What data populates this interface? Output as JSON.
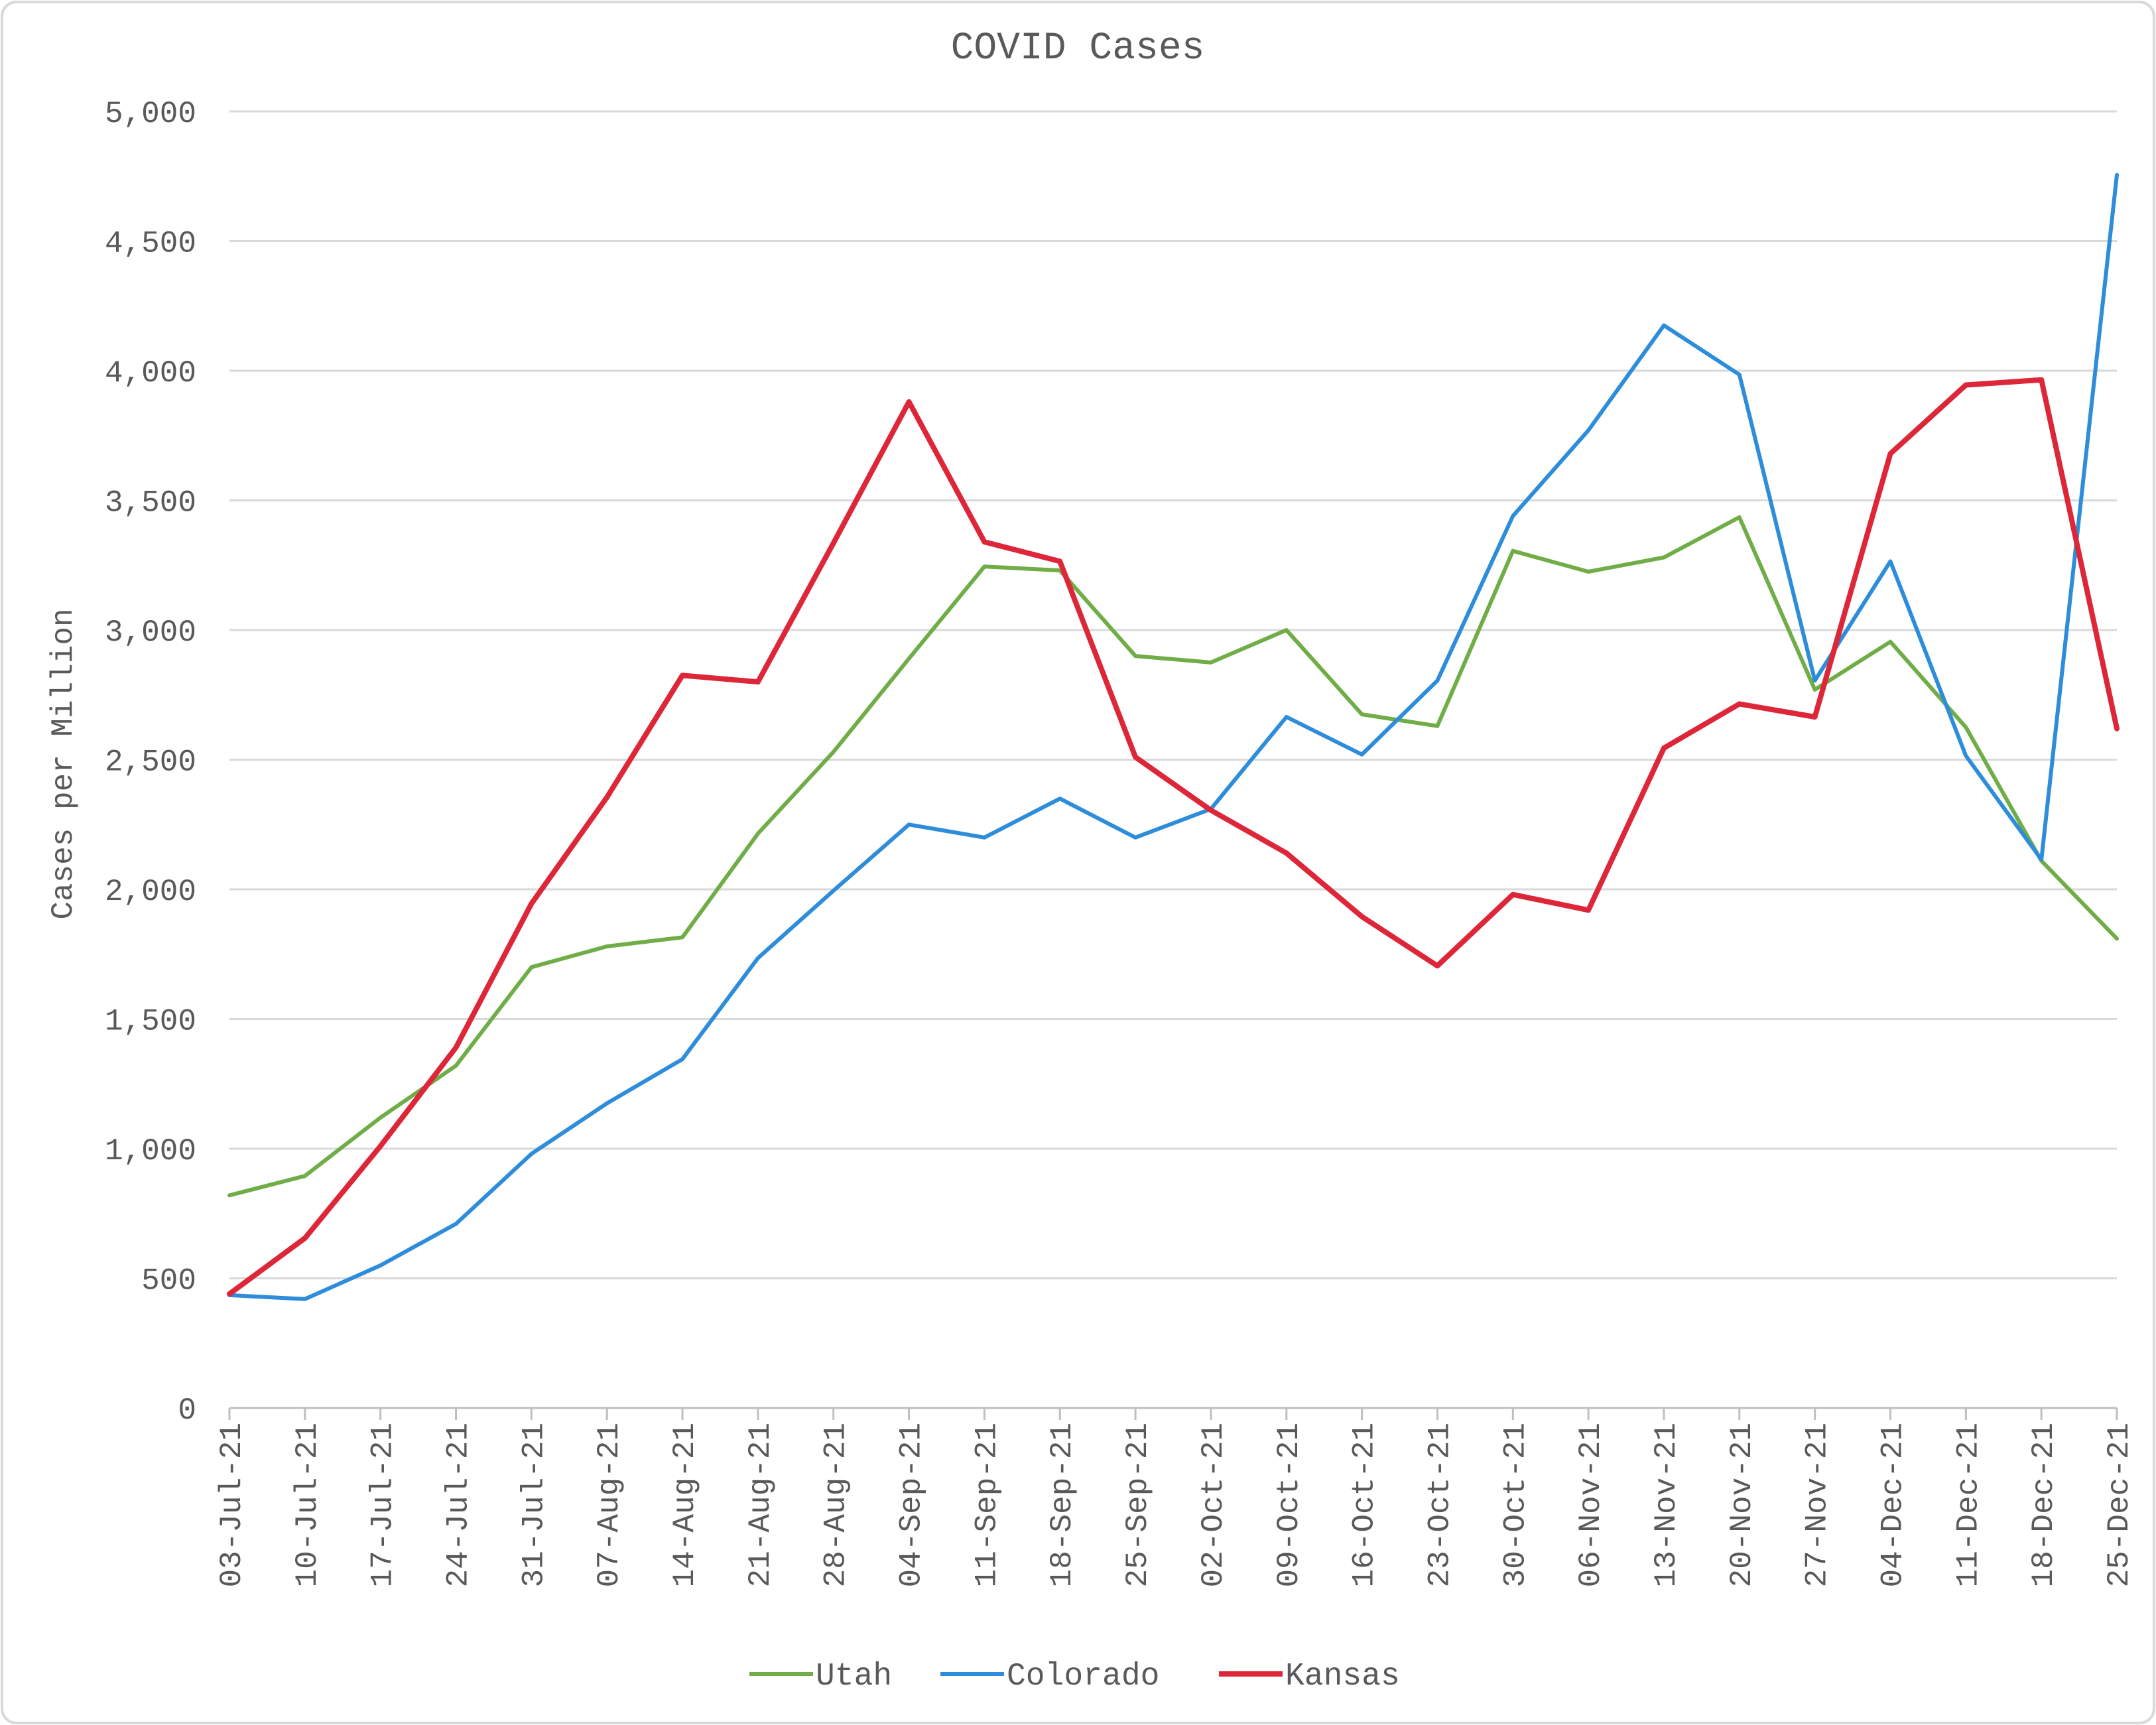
{
  "chart_data": {
    "type": "line",
    "title": "COVID Cases",
    "xlabel": "",
    "ylabel": "Cases per Million",
    "ylim": [
      0,
      5000
    ],
    "yticks": [
      0,
      500,
      1000,
      1500,
      2000,
      2500,
      3000,
      3500,
      4000,
      4500,
      5000
    ],
    "ytick_labels": [
      "0",
      "500",
      "1,000",
      "1,500",
      "2,000",
      "2,500",
      "3,000",
      "3,500",
      "4,000",
      "4,500",
      "5,000"
    ],
    "grid": true,
    "legend_position": "bottom",
    "categories": [
      "03-Jul-21",
      "10-Jul-21",
      "17-Jul-21",
      "24-Jul-21",
      "31-Jul-21",
      "07-Aug-21",
      "14-Aug-21",
      "21-Aug-21",
      "28-Aug-21",
      "04-Sep-21",
      "11-Sep-21",
      "18-Sep-21",
      "25-Sep-21",
      "02-Oct-21",
      "09-Oct-21",
      "16-Oct-21",
      "23-Oct-21",
      "30-Oct-21",
      "06-Nov-21",
      "13-Nov-21",
      "20-Nov-21",
      "27-Nov-21",
      "04-Dec-21",
      "11-Dec-21",
      "18-Dec-21",
      "25-Dec-21"
    ],
    "series": [
      {
        "name": "Utah",
        "color": "#70ad47",
        "values": [
          820,
          895,
          1120,
          1320,
          1700,
          1780,
          1815,
          2215,
          2530,
          2890,
          3245,
          3230,
          2900,
          2875,
          3000,
          2675,
          2630,
          3305,
          3225,
          3280,
          3435,
          2770,
          2955,
          2625,
          2110,
          1810
        ]
      },
      {
        "name": "Colorado",
        "color": "#2e8ddb",
        "values": [
          435,
          420,
          550,
          710,
          980,
          1175,
          1345,
          1735,
          1995,
          2250,
          2200,
          2350,
          2200,
          2310,
          2665,
          2520,
          2805,
          3440,
          3770,
          4175,
          3985,
          2805,
          3265,
          2515,
          2115,
          4755
        ]
      },
      {
        "name": "Kansas",
        "color": "#de2639",
        "values": [
          440,
          655,
          1010,
          1390,
          1945,
          2355,
          2825,
          2800,
          3335,
          3880,
          3340,
          3265,
          2510,
          2305,
          2140,
          1895,
          1705,
          1980,
          1920,
          2545,
          2715,
          2665,
          3680,
          3945,
          3965,
          2620
        ]
      }
    ]
  }
}
